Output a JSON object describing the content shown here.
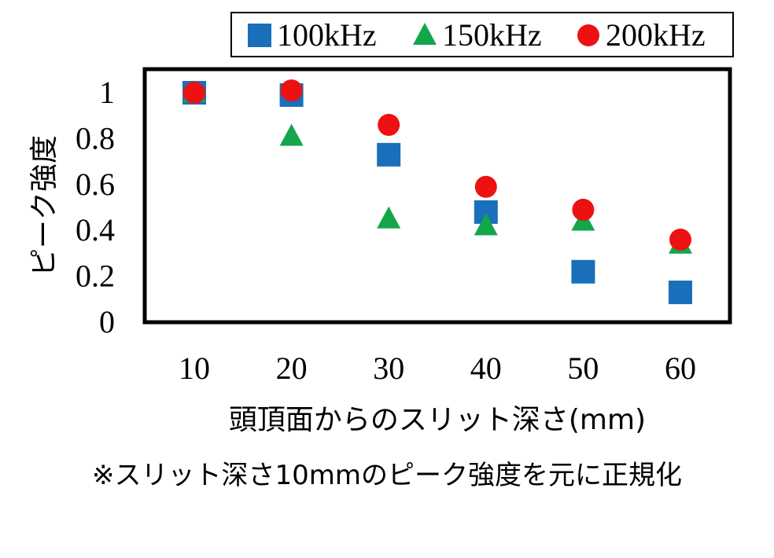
{
  "colors": {
    "100kHz": "#1a6fba",
    "150kHz": "#14a64a",
    "200kHz": "#ee1111",
    "frame": "#000000",
    "background": "#ffffff"
  },
  "chart_data": {
    "type": "scatter",
    "title": "",
    "xlabel": "頭頂面からのスリット深さ(mm)",
    "ylabel": "ピーク強度",
    "x": [
      10,
      20,
      30,
      40,
      50,
      60
    ],
    "xticks": [
      "10",
      "20",
      "30",
      "40",
      "50",
      "60"
    ],
    "yticks": [
      "0",
      "0.2",
      "0.4",
      "0.6",
      "0.8",
      "1"
    ],
    "ylim": [
      0,
      1
    ],
    "grid": false,
    "legend_position": "top-right",
    "series": [
      {
        "name": "100kHz",
        "marker": "square",
        "color_key": "100kHz",
        "values": [
          1.0,
          0.99,
          0.73,
          0.48,
          0.22,
          0.13
        ]
      },
      {
        "name": "150kHz",
        "marker": "triangle",
        "color_key": "150kHz",
        "values": [
          1.0,
          0.81,
          0.45,
          0.42,
          0.44,
          0.34
        ]
      },
      {
        "name": "200kHz",
        "marker": "circle",
        "color_key": "200kHz",
        "values": [
          1.0,
          1.01,
          0.86,
          0.59,
          0.49,
          0.36
        ]
      }
    ],
    "note": "※スリット深さ10mmのピーク強度を元に正規化"
  }
}
